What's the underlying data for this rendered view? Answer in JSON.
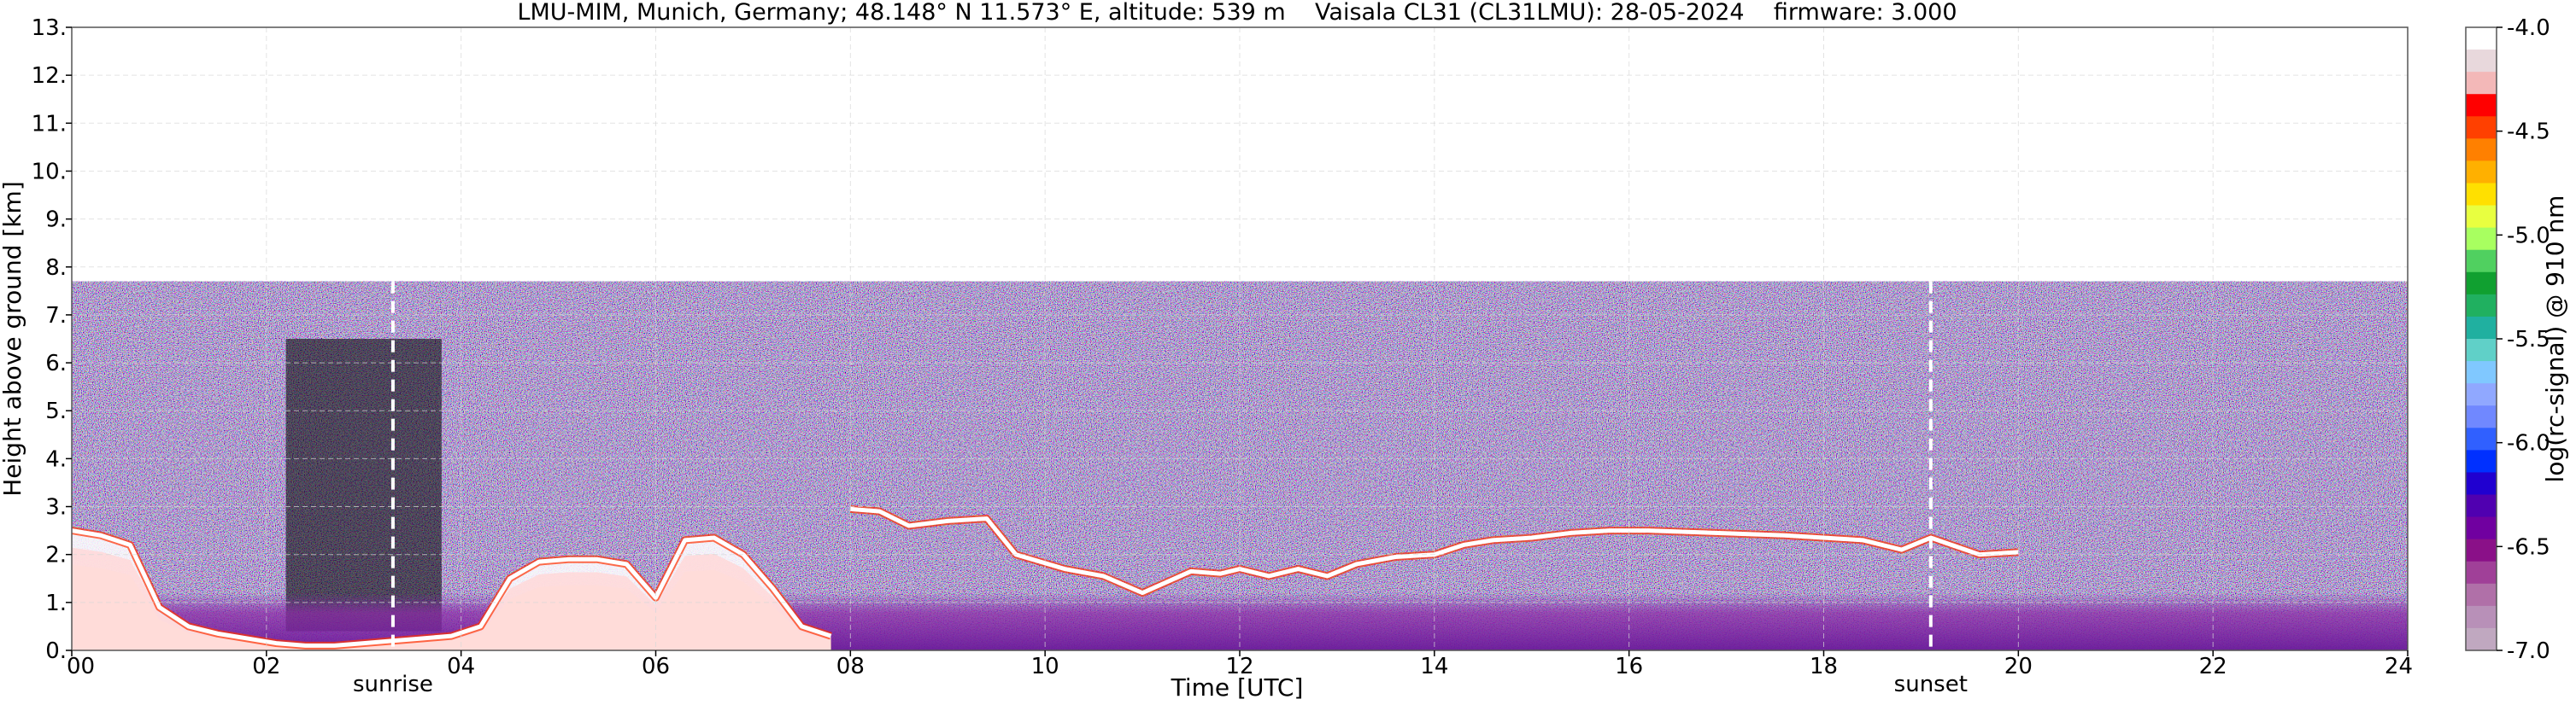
{
  "chart_data": {
    "type": "heatmap",
    "title": "LMU-MIM, Munich, Germany; 48.148° N 11.573° E, altitude: 539 m    Vaisala CL31 (CL31LMU): 28-05-2024    firmware: 3.000",
    "xlabel": "Time [UTC]",
    "ylabel": "Height above ground [km]",
    "xlim": [
      0,
      24
    ],
    "ylim": [
      0,
      13
    ],
    "x_ticks": [
      "00",
      "02",
      "04",
      "06",
      "08",
      "10",
      "12",
      "14",
      "16",
      "18",
      "20",
      "22",
      "24"
    ],
    "y_ticks": [
      "0.",
      "1.",
      "2.",
      "3.",
      "4.",
      "5.",
      "6.",
      "7.",
      "8.",
      "9.",
      "10.",
      "11.",
      "12.",
      "13."
    ],
    "grid": true,
    "measurement_top_km": 7.7,
    "colorbar": {
      "label": "log(rc-signal) @ 910 nm",
      "range": [
        -7.0,
        -4.0
      ],
      "ticks": [
        "-4.0",
        "-4.5",
        "-5.0",
        "-5.5",
        "-6.0",
        "-6.5",
        "-7.0"
      ],
      "levels": [
        "#ffffff",
        "#e8d8dc",
        "#f3b8b8",
        "#ff0000",
        "#ff4000",
        "#ff8000",
        "#ffb000",
        "#ffe000",
        "#e8ff40",
        "#a8ff60",
        "#50d060",
        "#10a030",
        "#20b060",
        "#20b0a0",
        "#60d0c8",
        "#80c8ff",
        "#90a8ff",
        "#7088ff",
        "#3060ff",
        "#0030ff",
        "#2000d0",
        "#5000b0",
        "#7000a0",
        "#8a1088",
        "#a04098",
        "#b070a8",
        "#b890b8",
        "#c0a8c0"
      ]
    },
    "annotations": [
      {
        "text": "sunrise",
        "x": 3.3
      },
      {
        "text": "sunset",
        "x": 19.1
      }
    ],
    "series": [
      {
        "name": "",
        "x": [
          0,
          0.3,
          0.6,
          0.9,
          1.2,
          1.5,
          1.8,
          2.1,
          2.4,
          2.7,
          3.0,
          3.3,
          3.6,
          3.9,
          4.2,
          4.5,
          4.8,
          5.1,
          5.4,
          5.7,
          6.0,
          6.3,
          6.6,
          6.9,
          7.2,
          7.5,
          7.8
        ],
        "values": [
          2.5,
          2.4,
          2.2,
          0.9,
          0.5,
          0.35,
          0.25,
          0.15,
          0.1,
          0.1,
          0.15,
          0.2,
          0.25,
          0.3,
          0.5,
          1.5,
          1.85,
          1.9,
          1.9,
          1.8,
          1.1,
          2.3,
          2.35,
          2.0,
          1.3,
          0.5,
          0.3
        ]
      },
      {
        "name": "",
        "x": [
          8.0,
          8.3,
          8.6,
          9.0,
          9.4,
          9.7,
          10.2,
          10.6,
          11.0,
          11.5,
          11.8,
          12.0,
          12.3,
          12.6,
          12.9,
          13.2,
          13.6,
          14.0,
          14.3,
          14.6,
          15.0,
          15.4,
          15.8,
          16.2,
          17.6,
          18.0,
          18.4,
          18.8,
          19.1,
          19.6,
          20.0
        ],
        "values": [
          2.95,
          2.9,
          2.6,
          2.7,
          2.75,
          2.0,
          1.7,
          1.55,
          1.2,
          1.65,
          1.6,
          1.7,
          1.55,
          1.7,
          1.55,
          1.8,
          1.95,
          2.0,
          2.2,
          2.3,
          2.35,
          2.45,
          2.5,
          2.5,
          2.4,
          2.35,
          2.3,
          2.1,
          2.35,
          2.0,
          2.05
        ]
      }
    ]
  }
}
